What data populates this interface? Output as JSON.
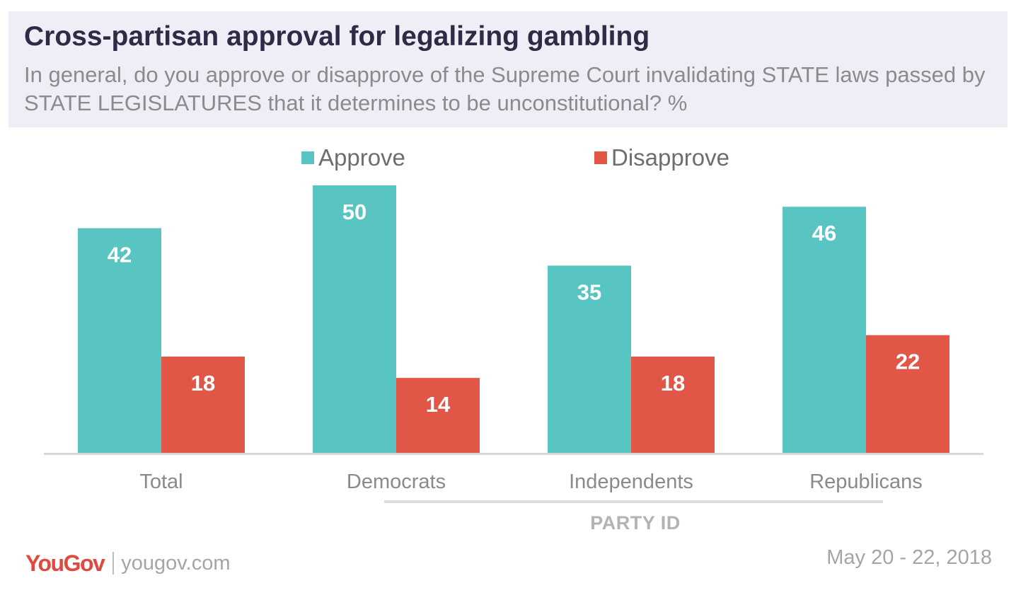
{
  "header": {
    "title": "Cross-partisan approval for legalizing gambling",
    "subtitle": "In general, do you approve or disapprove of the Supreme Court invalidating STATE laws passed by STATE LEGISLATURES that it determines to be unconstitutional? %"
  },
  "colors": {
    "approve": "#59c5c3",
    "disapprove": "#e25647",
    "axis": "#d9d9d9",
    "tick_text": "#8a8a8a"
  },
  "chart_data": {
    "type": "bar",
    "title": "Cross-partisan approval for legalizing gambling",
    "categories": [
      "Total",
      "Democrats",
      "Independents",
      "Republicans"
    ],
    "series": [
      {
        "name": "Approve",
        "values": [
          42,
          50,
          35,
          46
        ]
      },
      {
        "name": "Disapprove",
        "values": [
          18,
          14,
          18,
          22
        ]
      }
    ],
    "ylim": [
      0,
      50
    ],
    "grid": false,
    "legend": "top-center",
    "group_label": "PARTY ID"
  },
  "footer": {
    "logo": "YouGov",
    "site": "yougov.com",
    "date": "May 20 - 22, 2018"
  }
}
